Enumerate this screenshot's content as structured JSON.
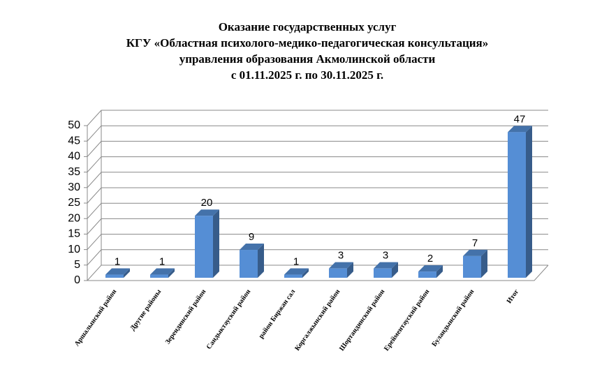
{
  "chart_data": {
    "type": "bar3d",
    "title": [
      "Оказание государственных услуг",
      "КГУ «Областная психолого-медико-педагогическая консультация»",
      "управления образования Акмолинской области",
      "с 01.11.2025 г. по 30.11.2025 г."
    ],
    "categories": [
      "Аршалынский район",
      "Другие районы",
      "Зерендинский район",
      "Сандыктауский район",
      "район Биржан сал",
      "Коргалжынский район",
      "Шортандинский район",
      "Ерейментауский район",
      "Буландынский район",
      "Итог"
    ],
    "values": [
      1,
      1,
      20,
      9,
      1,
      3,
      3,
      2,
      7,
      47
    ],
    "color": "#558ed5",
    "ylim": [
      0,
      50
    ],
    "yticks": [
      0,
      5,
      10,
      15,
      20,
      25,
      30,
      35,
      40,
      45,
      50
    ],
    "grid": true
  }
}
